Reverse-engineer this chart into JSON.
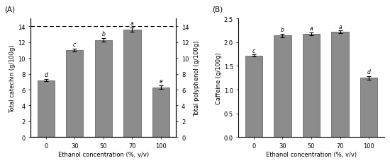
{
  "panel_A": {
    "label": "(A)",
    "categories": [
      "0",
      "30",
      "50",
      "70",
      "100"
    ],
    "values": [
      7.2,
      11.0,
      12.3,
      13.6,
      6.3
    ],
    "errors": [
      0.15,
      0.2,
      0.2,
      0.25,
      0.2
    ],
    "bar_labels": [
      "d",
      "c",
      "b",
      "a",
      "e"
    ],
    "ylabel_left": "Total catechin (g/100g)",
    "ylabel_right": "Total polyphenol (g/100g)",
    "xlabel": "Ethanol concentration (%, v/v)",
    "ylim": [
      0,
      15
    ],
    "yticks": [
      0,
      2,
      4,
      6,
      8,
      10,
      12,
      14
    ],
    "dashed_line_y": 14,
    "bar_color": "#8c8c8c"
  },
  "panel_B": {
    "label": "(B)",
    "categories": [
      "0",
      "30",
      "50",
      "70",
      "100"
    ],
    "values": [
      1.72,
      2.14,
      2.18,
      2.22,
      1.25
    ],
    "errors": [
      0.02,
      0.04,
      0.03,
      0.03,
      0.04
    ],
    "bar_labels": [
      "c",
      "b",
      "a",
      "a",
      "d"
    ],
    "ylabel_left": "Caffeine (g/100g)",
    "xlabel": "Ethanol concentration (%, v/v)",
    "ylim": [
      0,
      2.5
    ],
    "yticks": [
      0.0,
      0.5,
      1.0,
      1.5,
      2.0,
      2.5
    ],
    "bar_color": "#8c8c8c"
  },
  "figure_bg": "#ffffff",
  "axes_bg": "#ffffff",
  "bar_edge_color": "#555555",
  "border_color": "#aaaaaa"
}
